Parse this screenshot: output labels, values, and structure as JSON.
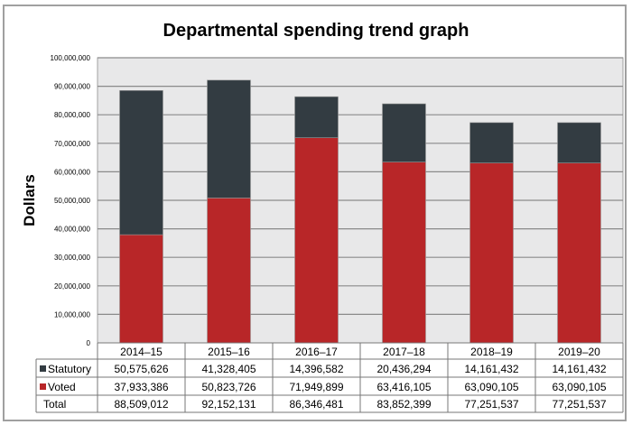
{
  "chart_data": {
    "type": "bar",
    "stacked": true,
    "title": "Departmental spending trend graph",
    "ylabel": "Dollars",
    "xlabel": "",
    "ylim": [
      0,
      100000000
    ],
    "yticks": [
      "0",
      "10,000,000",
      "20,000,000",
      "30,000,000",
      "40,000,000",
      "50,000,000",
      "60,000,000",
      "70,000,000",
      "80,000,000",
      "90,000,000",
      "100,000,000"
    ],
    "grid": true,
    "legend": "data-table",
    "categories": [
      "2014–15",
      "2015–16",
      "2016–17",
      "2017–18",
      "2018–19",
      "2019–20"
    ],
    "series": [
      {
        "name": "Voted",
        "color": "#b82628",
        "values": [
          37933386,
          50823726,
          71949899,
          63416105,
          63090105,
          63090105
        ],
        "labels": [
          "37,933,386",
          "50,823,726",
          "71,949,899",
          "63,416,105",
          "63,090,105",
          "63,090,105"
        ]
      },
      {
        "name": "Statutory",
        "color": "#333c42",
        "values": [
          50575626,
          41328405,
          14396582,
          20436294,
          14161432,
          14161432
        ],
        "labels": [
          "50,575,626",
          "41,328,405",
          "14,396,582",
          "20,436,294",
          "14,161,432",
          "14,161,432"
        ]
      }
    ],
    "totals": {
      "name": "Total",
      "labels": [
        "88,509,012",
        "92,152,131",
        "86,346,481",
        "83,852,399",
        "77,251,537",
        "77,251,537"
      ]
    },
    "plot_background": "#e8e8e9"
  }
}
